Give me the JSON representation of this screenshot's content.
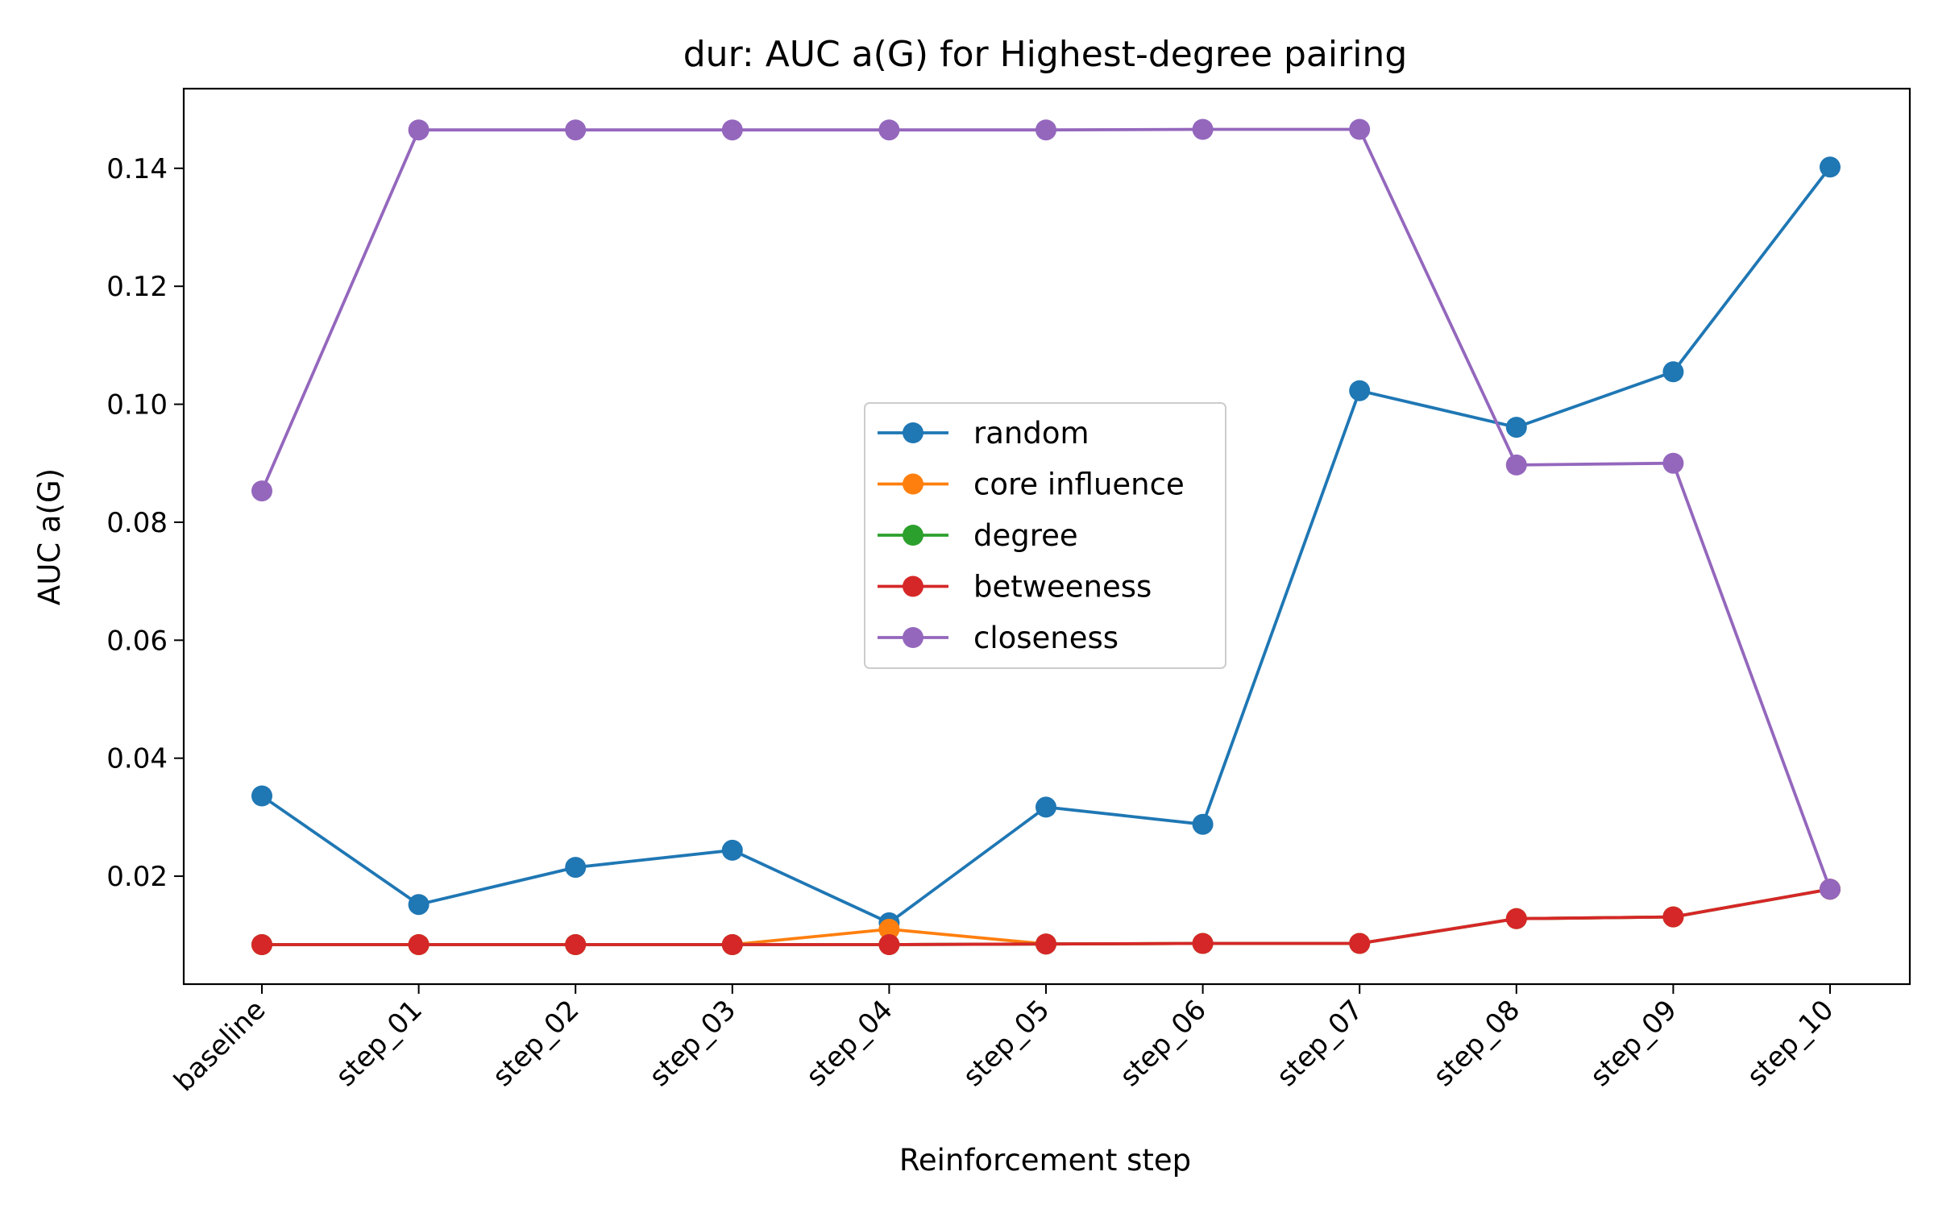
{
  "chart_data": {
    "type": "line",
    "title": "dur: AUC a(G) for Highest-degree pairing",
    "xlabel": "Reinforcement step",
    "ylabel": "AUC a(G)",
    "categories": [
      "baseline",
      "step_01",
      "step_02",
      "step_03",
      "step_04",
      "step_05",
      "step_06",
      "step_07",
      "step_08",
      "step_09",
      "step_10"
    ],
    "ylim": [
      0.0017,
      0.1535
    ],
    "yticks": [
      0.02,
      0.04,
      0.06,
      0.08,
      0.1,
      0.12,
      0.14
    ],
    "ytick_labels": [
      "0.02",
      "0.04",
      "0.06",
      "0.08",
      "0.10",
      "0.12",
      "0.14"
    ],
    "grid": false,
    "legend_position": "center",
    "series": [
      {
        "name": "random",
        "color": "#1f77b4",
        "values": [
          0.0336,
          0.0152,
          0.0215,
          0.0244,
          0.0121,
          0.0317,
          0.0288,
          0.1023,
          0.0961,
          0.1055,
          0.1402
        ]
      },
      {
        "name": "core influence",
        "color": "#ff7f0e",
        "values": [
          0.0084,
          0.0084,
          0.0084,
          0.0084,
          0.011,
          0.0085,
          0.0086,
          0.0086,
          0.0128,
          0.0131,
          0.0178
        ]
      },
      {
        "name": "degree",
        "color": "#2ca02c",
        "values": [
          0.0084,
          0.0084,
          0.0084,
          0.0084,
          0.0084,
          0.0085,
          0.0086,
          0.0086,
          0.0128,
          0.0131,
          0.0178
        ]
      },
      {
        "name": "betweeness",
        "color": "#d62728",
        "values": [
          0.0084,
          0.0084,
          0.0084,
          0.0084,
          0.0084,
          0.0085,
          0.0086,
          0.0086,
          0.0128,
          0.0131,
          0.0178
        ]
      },
      {
        "name": "closeness",
        "color": "#9467bd",
        "values": [
          0.0853,
          0.1465,
          0.1465,
          0.1465,
          0.1465,
          0.1465,
          0.1466,
          0.1466,
          0.0897,
          0.09,
          0.0178
        ]
      }
    ]
  }
}
